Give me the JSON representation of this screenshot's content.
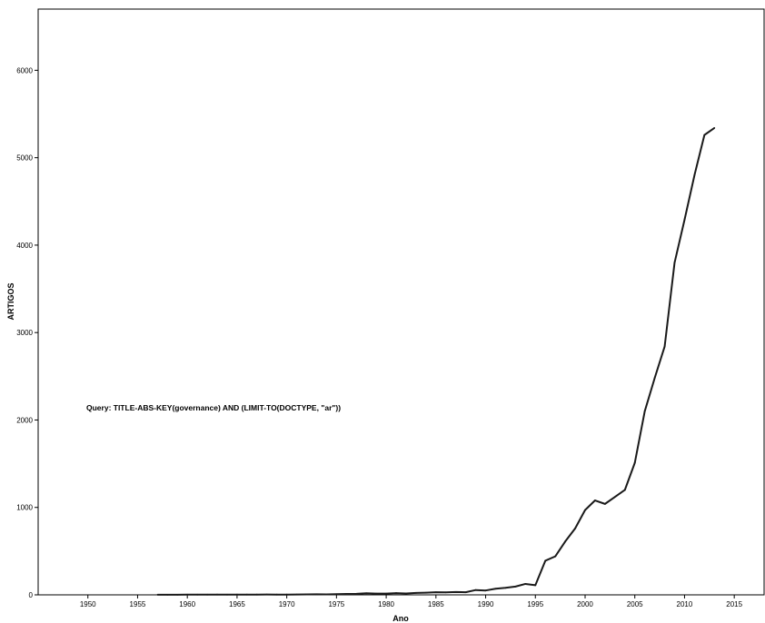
{
  "chart_data": {
    "type": "line",
    "title": "",
    "xlabel": "Ano",
    "ylabel": "ARTIGOS",
    "xlim": [
      1945,
      2018
    ],
    "ylim": [
      0,
      6700
    ],
    "xticks": [
      1950,
      1955,
      1960,
      1965,
      1970,
      1975,
      1980,
      1985,
      1990,
      1995,
      2000,
      2005,
      2010,
      2015
    ],
    "yticks": [
      0,
      1000,
      2000,
      3000,
      4000,
      5000,
      6000
    ],
    "grid": false,
    "legend": "none",
    "annotation": "Query: TITLE-ABS-KEY(governance) AND (LIMIT-TO(DOCTYPE, \"ar\"))",
    "series": [
      {
        "color": "#1a1a1a",
        "x": [
          1957,
          1958,
          1959,
          1960,
          1961,
          1962,
          1963,
          1964,
          1965,
          1966,
          1967,
          1968,
          1969,
          1970,
          1971,
          1972,
          1973,
          1974,
          1975,
          1976,
          1977,
          1978,
          1979,
          1980,
          1981,
          1982,
          1983,
          1984,
          1985,
          1986,
          1987,
          1988,
          1989,
          1990,
          1991,
          1992,
          1993,
          1994,
          1995,
          1996,
          1997,
          1998,
          1999,
          2000,
          2001,
          2002,
          2003,
          2004,
          2005,
          2006,
          2007,
          2008,
          2009,
          2010,
          2011,
          2012,
          2013
        ],
        "y": [
          1,
          1,
          1,
          2,
          2,
          2,
          3,
          2,
          3,
          3,
          3,
          4,
          3,
          3,
          4,
          5,
          6,
          5,
          8,
          10,
          12,
          18,
          14,
          14,
          20,
          16,
          22,
          25,
          30,
          28,
          32,
          30,
          55,
          50,
          70,
          80,
          95,
          125,
          110,
          390,
          440,
          610,
          760,
          970,
          1080,
          1040,
          1120,
          1200,
          1510,
          2100,
          2480,
          2840,
          3800,
          4290,
          4800,
          5260,
          5340
        ]
      }
    ]
  }
}
